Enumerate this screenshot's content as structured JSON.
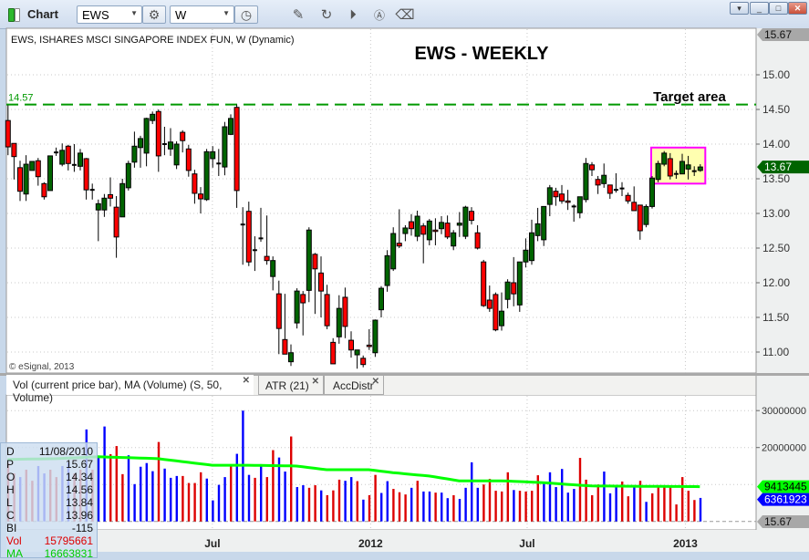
{
  "window": {
    "title": "Chart",
    "symbol": "EWS",
    "interval": "W"
  },
  "toolbar": {
    "icons": [
      "gear-icon",
      "clock-icon",
      "pencil-icon",
      "chart-refresh-icon",
      "play-icon",
      "annotation-a-icon",
      "eraser-icon"
    ]
  },
  "chart_title": "EWS, ISHARES MSCI SINGAPORE INDEX FUN, W (Dynamic)",
  "heading": "EWS - WEEKLY",
  "annotation": "Target area",
  "target_line": {
    "price": 14.57,
    "label": "14.57",
    "color": "#009900"
  },
  "highlight_box": {
    "from": "2012-11-26",
    "to": "2013-01-21",
    "price_high": 13.95,
    "price_low": 13.43,
    "fill": "#ffffb0",
    "border": "#ff00ff"
  },
  "copyright": "© eSignal, 2013",
  "colors": {
    "up_candle": "#006400",
    "down_candle": "#ff0000",
    "up_volume": "#0000ff",
    "down_volume": "#dd0000",
    "ma": "#00ff00"
  },
  "price_axis": {
    "ticks": [
      "15.00",
      "14.50",
      "14.00",
      "13.50",
      "13.00",
      "12.50",
      "12.00",
      "11.50",
      "11.00"
    ],
    "high_tag": "15.67",
    "last_tag": "13.67"
  },
  "volume_axis": {
    "ticks": [
      "30000000",
      "20000000"
    ],
    "ma_tag": "9413445",
    "vol_tag": "6361923",
    "bottom_tag": "15.67"
  },
  "date_axis": [
    {
      "label": "Jul",
      "date": "2011-07-01"
    },
    {
      "label": "2012",
      "date": "2012-01-01"
    },
    {
      "label": "Jul",
      "date": "2012-07-01"
    },
    {
      "label": "2013",
      "date": "2013-01-01"
    }
  ],
  "tabs": [
    {
      "label": "Vol (current price bar), MA (Volume) (S, 50, Volume)"
    },
    {
      "label": "ATR (21)"
    },
    {
      "label": "AccDistr"
    }
  ],
  "data_window": [
    {
      "k": "D",
      "v": "11/08/2010"
    },
    {
      "k": "P",
      "v": "15.67"
    },
    {
      "k": "O",
      "v": "14.34"
    },
    {
      "k": "H",
      "v": "14.56"
    },
    {
      "k": "L",
      "v": "13.84"
    },
    {
      "k": "C",
      "v": "13.96"
    },
    {
      "k": "BI",
      "v": "-115"
    },
    {
      "k": "Vol",
      "v": "15795661"
    },
    {
      "k": "MA",
      "v": "16663831"
    }
  ],
  "chart_data": {
    "type": "candlestick",
    "interval": "weekly",
    "first_bar": "2010-11-08",
    "ylim": [
      10.75,
      15.67
    ],
    "ohlc": [
      [
        14.34,
        14.56,
        13.84,
        13.96
      ],
      [
        14.01,
        14.01,
        13.49,
        13.82
      ],
      [
        13.66,
        13.76,
        13.18,
        13.32
      ],
      [
        13.28,
        13.84,
        13.18,
        13.71
      ],
      [
        13.62,
        13.75,
        13.62,
        13.75
      ],
      [
        13.76,
        13.8,
        13.4,
        13.53
      ],
      [
        13.43,
        13.45,
        13.2,
        13.24
      ],
      [
        13.33,
        13.83,
        13.33,
        13.83
      ],
      [
        13.88,
        13.95,
        13.83,
        13.88
      ],
      [
        13.71,
        14.01,
        13.68,
        13.91
      ],
      [
        13.97,
        13.99,
        13.62,
        13.72
      ],
      [
        13.7,
        14.0,
        13.6,
        13.7
      ],
      [
        13.68,
        13.93,
        13.62,
        13.87
      ],
      [
        13.79,
        13.8,
        13.2,
        13.34
      ],
      [
        13.34,
        13.43,
        13.2,
        13.34
      ],
      [
        13.05,
        13.2,
        12.6,
        13.14
      ],
      [
        13.05,
        13.28,
        12.95,
        13.22
      ],
      [
        13.27,
        13.52,
        13.1,
        13.22
      ],
      [
        13.09,
        13.25,
        12.36,
        12.66
      ],
      [
        12.95,
        13.5,
        12.95,
        13.43
      ],
      [
        13.37,
        13.76,
        13.33,
        13.72
      ],
      [
        13.74,
        14.18,
        13.66,
        13.97
      ],
      [
        13.95,
        14.12,
        13.66,
        14.08
      ],
      [
        13.87,
        14.38,
        13.68,
        14.37
      ],
      [
        14.34,
        14.47,
        14.29,
        14.43
      ],
      [
        14.47,
        14.5,
        13.6,
        13.83
      ],
      [
        14.0,
        14.25,
        13.84,
        14.0
      ],
      [
        13.93,
        14.23,
        13.83,
        14.03
      ],
      [
        13.7,
        14.04,
        13.64,
        14.0
      ],
      [
        14.17,
        14.2,
        13.88,
        14.05
      ],
      [
        13.93,
        13.99,
        13.53,
        13.62
      ],
      [
        13.57,
        13.63,
        13.14,
        13.29
      ],
      [
        13.28,
        13.38,
        13.0,
        13.21
      ],
      [
        13.2,
        13.93,
        13.18,
        13.89
      ],
      [
        13.79,
        13.97,
        13.66,
        13.89
      ],
      [
        13.72,
        13.93,
        13.54,
        13.72
      ],
      [
        13.67,
        14.32,
        13.55,
        14.25
      ],
      [
        14.14,
        14.43,
        14.13,
        14.37
      ],
      [
        14.53,
        14.57,
        13.08,
        13.33
      ],
      [
        12.84,
        13.09,
        12.26,
        12.84
      ],
      [
        13.03,
        13.17,
        12.24,
        12.3
      ],
      [
        12.47,
        12.67,
        12.17,
        12.47
      ],
      [
        12.64,
        13.08,
        12.59,
        12.64
      ],
      [
        12.38,
        12.97,
        12.26,
        12.32
      ],
      [
        12.09,
        12.38,
        11.89,
        12.32
      ],
      [
        11.84,
        12.03,
        10.97,
        11.34
      ],
      [
        11.18,
        11.84,
        10.97,
        10.97
      ],
      [
        10.86,
        11.11,
        10.8,
        10.99
      ],
      [
        11.42,
        11.92,
        11.34,
        11.88
      ],
      [
        11.83,
        11.88,
        11.24,
        11.71
      ],
      [
        11.89,
        12.8,
        11.72,
        12.76
      ],
      [
        12.41,
        12.43,
        11.55,
        12.2
      ],
      [
        12.14,
        12.38,
        11.5,
        11.88
      ],
      [
        11.83,
        11.97,
        11.33,
        11.38
      ],
      [
        11.14,
        11.2,
        10.83,
        10.83
      ],
      [
        11.22,
        11.82,
        11.12,
        11.63
      ],
      [
        11.79,
        11.93,
        11.2,
        11.37
      ],
      [
        11.17,
        11.3,
        10.92,
        11.03
      ],
      [
        10.96,
        11.03,
        10.76,
        11.03
      ],
      [
        10.91,
        10.95,
        10.78,
        10.82
      ],
      [
        11.1,
        11.33,
        11.03,
        11.08
      ],
      [
        10.99,
        11.47,
        10.93,
        11.46
      ],
      [
        11.61,
        11.95,
        11.5,
        11.92
      ],
      [
        11.96,
        12.47,
        11.87,
        12.39
      ],
      [
        12.2,
        12.8,
        12.17,
        12.71
      ],
      [
        12.57,
        13.06,
        12.5,
        12.53
      ],
      [
        12.71,
        12.83,
        12.6,
        12.79
      ],
      [
        12.88,
        12.99,
        12.68,
        12.78
      ],
      [
        12.67,
        13.04,
        12.6,
        12.96
      ],
      [
        12.82,
        12.86,
        12.28,
        12.7
      ],
      [
        12.62,
        12.92,
        12.54,
        12.89
      ],
      [
        12.76,
        12.93,
        12.54,
        12.74
      ],
      [
        12.78,
        12.96,
        12.7,
        12.87
      ],
      [
        12.86,
        12.97,
        12.63,
        12.66
      ],
      [
        12.53,
        12.76,
        12.47,
        12.72
      ],
      [
        12.83,
        13.02,
        12.66,
        12.86
      ],
      [
        12.67,
        13.11,
        12.63,
        13.09
      ],
      [
        13.03,
        13.09,
        12.84,
        12.9
      ],
      [
        12.72,
        12.83,
        12.48,
        12.5
      ],
      [
        12.3,
        12.33,
        11.65,
        11.67
      ],
      [
        11.75,
        11.96,
        11.58,
        11.63
      ],
      [
        11.83,
        11.86,
        11.3,
        11.32
      ],
      [
        11.38,
        11.86,
        11.31,
        11.59
      ],
      [
        11.76,
        12.05,
        11.63,
        12.01
      ],
      [
        12.0,
        12.37,
        11.66,
        11.84
      ],
      [
        11.68,
        12.3,
        11.58,
        12.3
      ],
      [
        12.3,
        12.64,
        12.22,
        12.47
      ],
      [
        12.32,
        12.91,
        12.26,
        12.72
      ],
      [
        12.68,
        13.08,
        12.6,
        12.85
      ],
      [
        12.62,
        13.1,
        12.53,
        13.1
      ],
      [
        13.13,
        13.41,
        12.96,
        13.37
      ],
      [
        13.32,
        13.37,
        13.11,
        13.24
      ],
      [
        13.28,
        13.41,
        13.14,
        13.18
      ],
      [
        13.18,
        13.34,
        13.05,
        13.16
      ],
      [
        13.1,
        13.13,
        12.88,
        13.1
      ],
      [
        13.01,
        13.24,
        12.93,
        13.24
      ],
      [
        13.2,
        13.8,
        13.16,
        13.72
      ],
      [
        13.7,
        13.74,
        13.54,
        13.63
      ],
      [
        13.49,
        13.54,
        13.28,
        13.41
      ],
      [
        13.43,
        13.72,
        13.37,
        13.55
      ],
      [
        13.41,
        13.41,
        13.21,
        13.29
      ],
      [
        13.34,
        13.58,
        13.3,
        13.34
      ],
      [
        13.36,
        13.45,
        13.25,
        13.36
      ],
      [
        13.26,
        13.3,
        13.14,
        13.18
      ],
      [
        13.16,
        13.39,
        13.04,
        13.04
      ],
      [
        13.12,
        13.12,
        12.62,
        12.75
      ],
      [
        12.84,
        13.13,
        12.8,
        13.1
      ],
      [
        13.1,
        13.54,
        13.07,
        13.51
      ],
      [
        13.49,
        13.76,
        13.45,
        13.72
      ],
      [
        13.71,
        13.9,
        13.68,
        13.87
      ],
      [
        13.79,
        13.87,
        13.49,
        13.54
      ],
      [
        13.57,
        13.62,
        13.5,
        13.57
      ],
      [
        13.57,
        13.86,
        13.57,
        13.75
      ],
      [
        13.64,
        13.83,
        13.49,
        13.7
      ],
      [
        13.61,
        13.68,
        13.54,
        13.61
      ],
      [
        13.62,
        13.71,
        13.6,
        13.67
      ]
    ],
    "volume_ylim": [
      0,
      35000000
    ],
    "volume": [
      15795661,
      13000000,
      12000000,
      14000000,
      11000000,
      15000000,
      13000000,
      14000000,
      12000000,
      15000000,
      16000000,
      13000000,
      14000000,
      24900000,
      14000000,
      17300000,
      25700000,
      18200000,
      20400000,
      12800000,
      17900000,
      10100000,
      14800000,
      15800000,
      13600000,
      21500000,
      14300000,
      11800000,
      12300000,
      12300000,
      10400000,
      10400000,
      13300000,
      11600000,
      5700000,
      9900000,
      12000000,
      15200000,
      18300000,
      30000000,
      12600000,
      11800000,
      15500000,
      12000000,
      19300000,
      17300000,
      13500000,
      23000000,
      9300000,
      9800000,
      9100000,
      9800000,
      8400000,
      7100000,
      8400000,
      11300000,
      11000000,
      12000000,
      10900000,
      5900000,
      7100000,
      12600000,
      7700000,
      10900000,
      8800000,
      7900000,
      7300000,
      9100000,
      11000000,
      8100000,
      8100000,
      7800000,
      7800000,
      6300000,
      7100000,
      6100000,
      9100000,
      16000000,
      9100000,
      10000000,
      11500000,
      8300000,
      8100000,
      13300000,
      8500000,
      8300000,
      8100000,
      8300000,
      12500000,
      10500000,
      13300000,
      9300000,
      14200000,
      7800000,
      8800000,
      17200000,
      11300000,
      7100000,
      10000000,
      13500000,
      7600000,
      9800000,
      10800000,
      6800000,
      9300000,
      11000000,
      5300000,
      7600000,
      9300000,
      9800000,
      9800000,
      4600000,
      12000000,
      8300000,
      5800000,
      6361923
    ],
    "volume_direction": "ddudduudduudduduuddduuuuuduuudddduuuuduuududduuduudduddduududduuddd",
    "volume_direction_tail": "uduuduuduuuudddddudddduuuuuudddduuuddududddddddduuuuduuuu",
    "ma_name": "MA (Volume) (S, 50, Volume)",
    "ma_points": [
      [
        0,
        16800000
      ],
      [
        8,
        17000000
      ],
      [
        15,
        17500000
      ],
      [
        25,
        17000000
      ],
      [
        34,
        15200000
      ],
      [
        40,
        15200000
      ],
      [
        48,
        15000000
      ],
      [
        53,
        14000000
      ],
      [
        60,
        14000000
      ],
      [
        64,
        13200000
      ],
      [
        70,
        12300000
      ],
      [
        75,
        11000000
      ],
      [
        82,
        11000000
      ],
      [
        89,
        10500000
      ],
      [
        95,
        9800000
      ],
      [
        97,
        9600000
      ],
      [
        115,
        9413445
      ]
    ]
  }
}
